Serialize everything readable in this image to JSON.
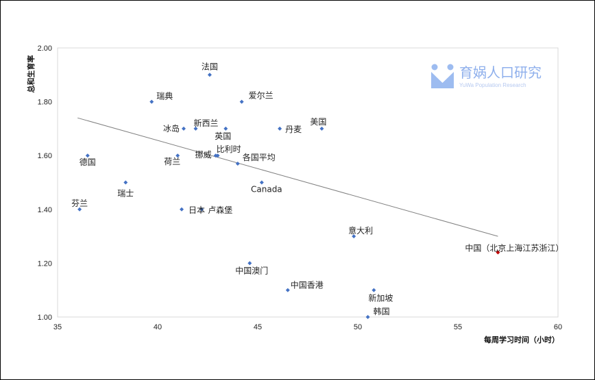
{
  "chart_data": {
    "type": "scatter",
    "xlabel": "每周学习时间（小时）",
    "ylabel": "总和生育率",
    "xlim": [
      35,
      60
    ],
    "ylim": [
      1.0,
      2.0
    ],
    "x_ticks": [
      "35",
      "40",
      "45",
      "50",
      "55",
      "60"
    ],
    "y_ticks": [
      "1.00",
      "1.20",
      "1.40",
      "1.60",
      "1.80",
      "2.00"
    ],
    "grid": false,
    "trendline": {
      "x": [
        36.0,
        57.0
      ],
      "y": [
        1.74,
        1.3
      ]
    },
    "colors": {
      "point": "#4472c4",
      "highlight": "#c00000",
      "trend": "#7f7f7f"
    },
    "points": [
      {
        "label": "法国",
        "x": 42.6,
        "y": 1.9
      },
      {
        "label": "瑞典",
        "x": 39.7,
        "y": 1.8
      },
      {
        "label": "爱尔兰",
        "x": 44.2,
        "y": 1.8
      },
      {
        "label": "冰岛",
        "x": 41.3,
        "y": 1.7
      },
      {
        "label": "新西兰",
        "x": 41.9,
        "y": 1.7
      },
      {
        "label": "英国",
        "x": 43.4,
        "y": 1.7
      },
      {
        "label": "丹麦",
        "x": 46.1,
        "y": 1.7
      },
      {
        "label": "美国",
        "x": 48.2,
        "y": 1.7
      },
      {
        "label": "德国",
        "x": 36.5,
        "y": 1.6
      },
      {
        "label": "荷兰",
        "x": 41.0,
        "y": 1.6
      },
      {
        "label": "挪威",
        "x": 42.9,
        "y": 1.6
      },
      {
        "label": "比利时",
        "x": 43.0,
        "y": 1.6
      },
      {
        "label": "各国平均",
        "x": 44.0,
        "y": 1.57
      },
      {
        "label": "瑞士",
        "x": 38.4,
        "y": 1.5
      },
      {
        "label": "Canada",
        "x": 45.2,
        "y": 1.5
      },
      {
        "label": "芬兰",
        "x": 36.1,
        "y": 1.4
      },
      {
        "label": "日本",
        "x": 41.2,
        "y": 1.4
      },
      {
        "label": "卢森堡",
        "x": 42.2,
        "y": 1.4
      },
      {
        "label": "意大利",
        "x": 49.8,
        "y": 1.3
      },
      {
        "label": "中国（北京上海江苏浙江）",
        "x": 57.0,
        "y": 1.24,
        "highlight": true
      },
      {
        "label": "中国澳门",
        "x": 44.6,
        "y": 1.2
      },
      {
        "label": "中国香港",
        "x": 46.5,
        "y": 1.1
      },
      {
        "label": "新加坡",
        "x": 50.8,
        "y": 1.1
      },
      {
        "label": "韩国",
        "x": 50.5,
        "y": 1.0
      }
    ]
  },
  "watermark": {
    "icon": "yuwa-logo-icon",
    "name": "育娲人口研究",
    "sub": "YuWa Population Research"
  }
}
